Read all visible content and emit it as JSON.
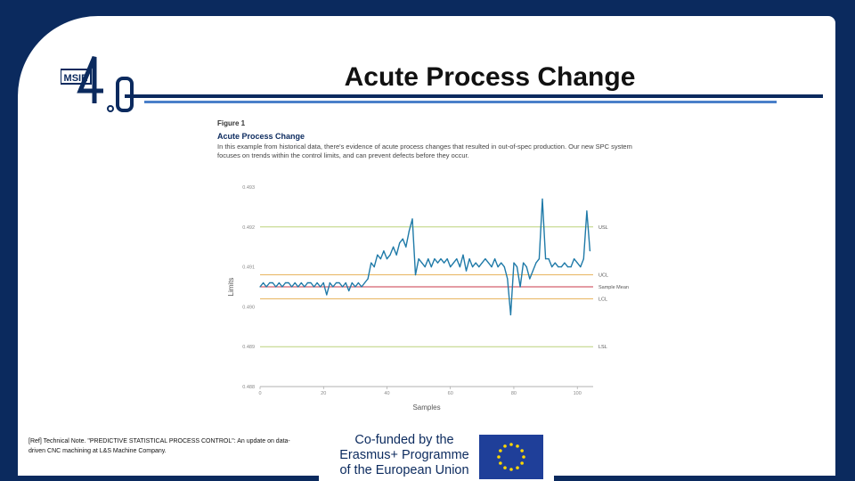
{
  "slide": {
    "title": "Acute Process Change",
    "logo_text": "MSIE",
    "logo_numeral": "4.0",
    "reference": "[Ref] Technical Note. \"PREDICTIVE STATISTICAL PROCESS CONTROL\": An update on data-driven CNC machining at L&S Machine Company.",
    "funding_lines": [
      "Co-funded by the",
      "Erasmus+ Programme",
      "of the European Union"
    ]
  },
  "figure": {
    "label": "Figure 1",
    "title": "Acute Process Change",
    "description": "In this example from historical data, there's evidence of acute process changes that resulted in out-of-spec production. Our new SPC system focuses on trends within the control limits, and can prevent defects before they occur."
  },
  "chart_data": {
    "type": "line",
    "xlabel": "Samples",
    "ylabel": "Limits",
    "xlim": [
      0,
      105
    ],
    "ylim": [
      0.488,
      0.493
    ],
    "xticks": [
      0,
      20,
      40,
      60,
      80,
      100
    ],
    "yticks": [
      0.488,
      0.489,
      0.49,
      0.491,
      0.492,
      0.493
    ],
    "ytick_labels": [
      "0.488",
      "0.489",
      "0.490",
      "0.491",
      "0.492",
      "0.493"
    ],
    "reference_lines": [
      {
        "name": "USL",
        "value": 0.492,
        "color": "#bcd27a"
      },
      {
        "name": "UCL",
        "value": 0.4908,
        "color": "#e8b560"
      },
      {
        "name": "Sample Mean",
        "value": 0.4905,
        "color": "#c93a4a"
      },
      {
        "name": "LCL",
        "value": 0.4902,
        "color": "#e8b560"
      },
      {
        "name": "LSL",
        "value": 0.489,
        "color": "#bcd27a"
      }
    ],
    "series": [
      {
        "color": "#1f7aa8",
        "x": [
          0,
          1,
          2,
          3,
          4,
          5,
          6,
          7,
          8,
          9,
          10,
          11,
          12,
          13,
          14,
          15,
          16,
          17,
          18,
          19,
          20,
          21,
          22,
          23,
          24,
          25,
          26,
          27,
          28,
          29,
          30,
          31,
          32,
          33,
          34,
          35,
          36,
          37,
          38,
          39,
          40,
          41,
          42,
          43,
          44,
          45,
          46,
          47,
          48,
          49,
          50,
          51,
          52,
          53,
          54,
          55,
          56,
          57,
          58,
          59,
          60,
          61,
          62,
          63,
          64,
          65,
          66,
          67,
          68,
          69,
          70,
          71,
          72,
          73,
          74,
          75,
          76,
          77,
          78,
          79,
          80,
          81,
          82,
          83,
          84,
          85,
          86,
          87,
          88,
          89,
          90,
          91,
          92,
          93,
          94,
          95,
          96,
          97,
          98,
          99,
          100,
          101,
          102,
          103,
          104
        ],
        "values": [
          0.4905,
          0.4906,
          0.4905,
          0.4906,
          0.4906,
          0.4905,
          0.4906,
          0.4905,
          0.4906,
          0.4906,
          0.4905,
          0.4906,
          0.4905,
          0.4906,
          0.4905,
          0.4906,
          0.4906,
          0.4905,
          0.4906,
          0.4905,
          0.4906,
          0.4903,
          0.4906,
          0.4905,
          0.4906,
          0.4906,
          0.4905,
          0.4906,
          0.4904,
          0.4906,
          0.4905,
          0.4906,
          0.4905,
          0.4906,
          0.4907,
          0.4911,
          0.491,
          0.4913,
          0.4912,
          0.4914,
          0.4912,
          0.4913,
          0.4915,
          0.4913,
          0.4916,
          0.4917,
          0.4915,
          0.4919,
          0.4922,
          0.4908,
          0.4912,
          0.4911,
          0.491,
          0.4912,
          0.491,
          0.4912,
          0.4911,
          0.4912,
          0.4911,
          0.4912,
          0.491,
          0.4911,
          0.4912,
          0.491,
          0.4913,
          0.4909,
          0.4912,
          0.491,
          0.4911,
          0.491,
          0.4911,
          0.4912,
          0.4911,
          0.491,
          0.4912,
          0.491,
          0.4911,
          0.491,
          0.4907,
          0.4898,
          0.4911,
          0.491,
          0.4905,
          0.4911,
          0.491,
          0.4907,
          0.4909,
          0.4911,
          0.4912,
          0.4927,
          0.4912,
          0.4912,
          0.491,
          0.4911,
          0.491,
          0.491,
          0.4911,
          0.491,
          0.491,
          0.4912,
          0.4911,
          0.491,
          0.4912,
          0.4924,
          0.4914
        ]
      }
    ]
  },
  "colors": {
    "frame": "#0b2a5e",
    "accent_line": "#4a7fc9",
    "series": "#1f7aa8"
  }
}
